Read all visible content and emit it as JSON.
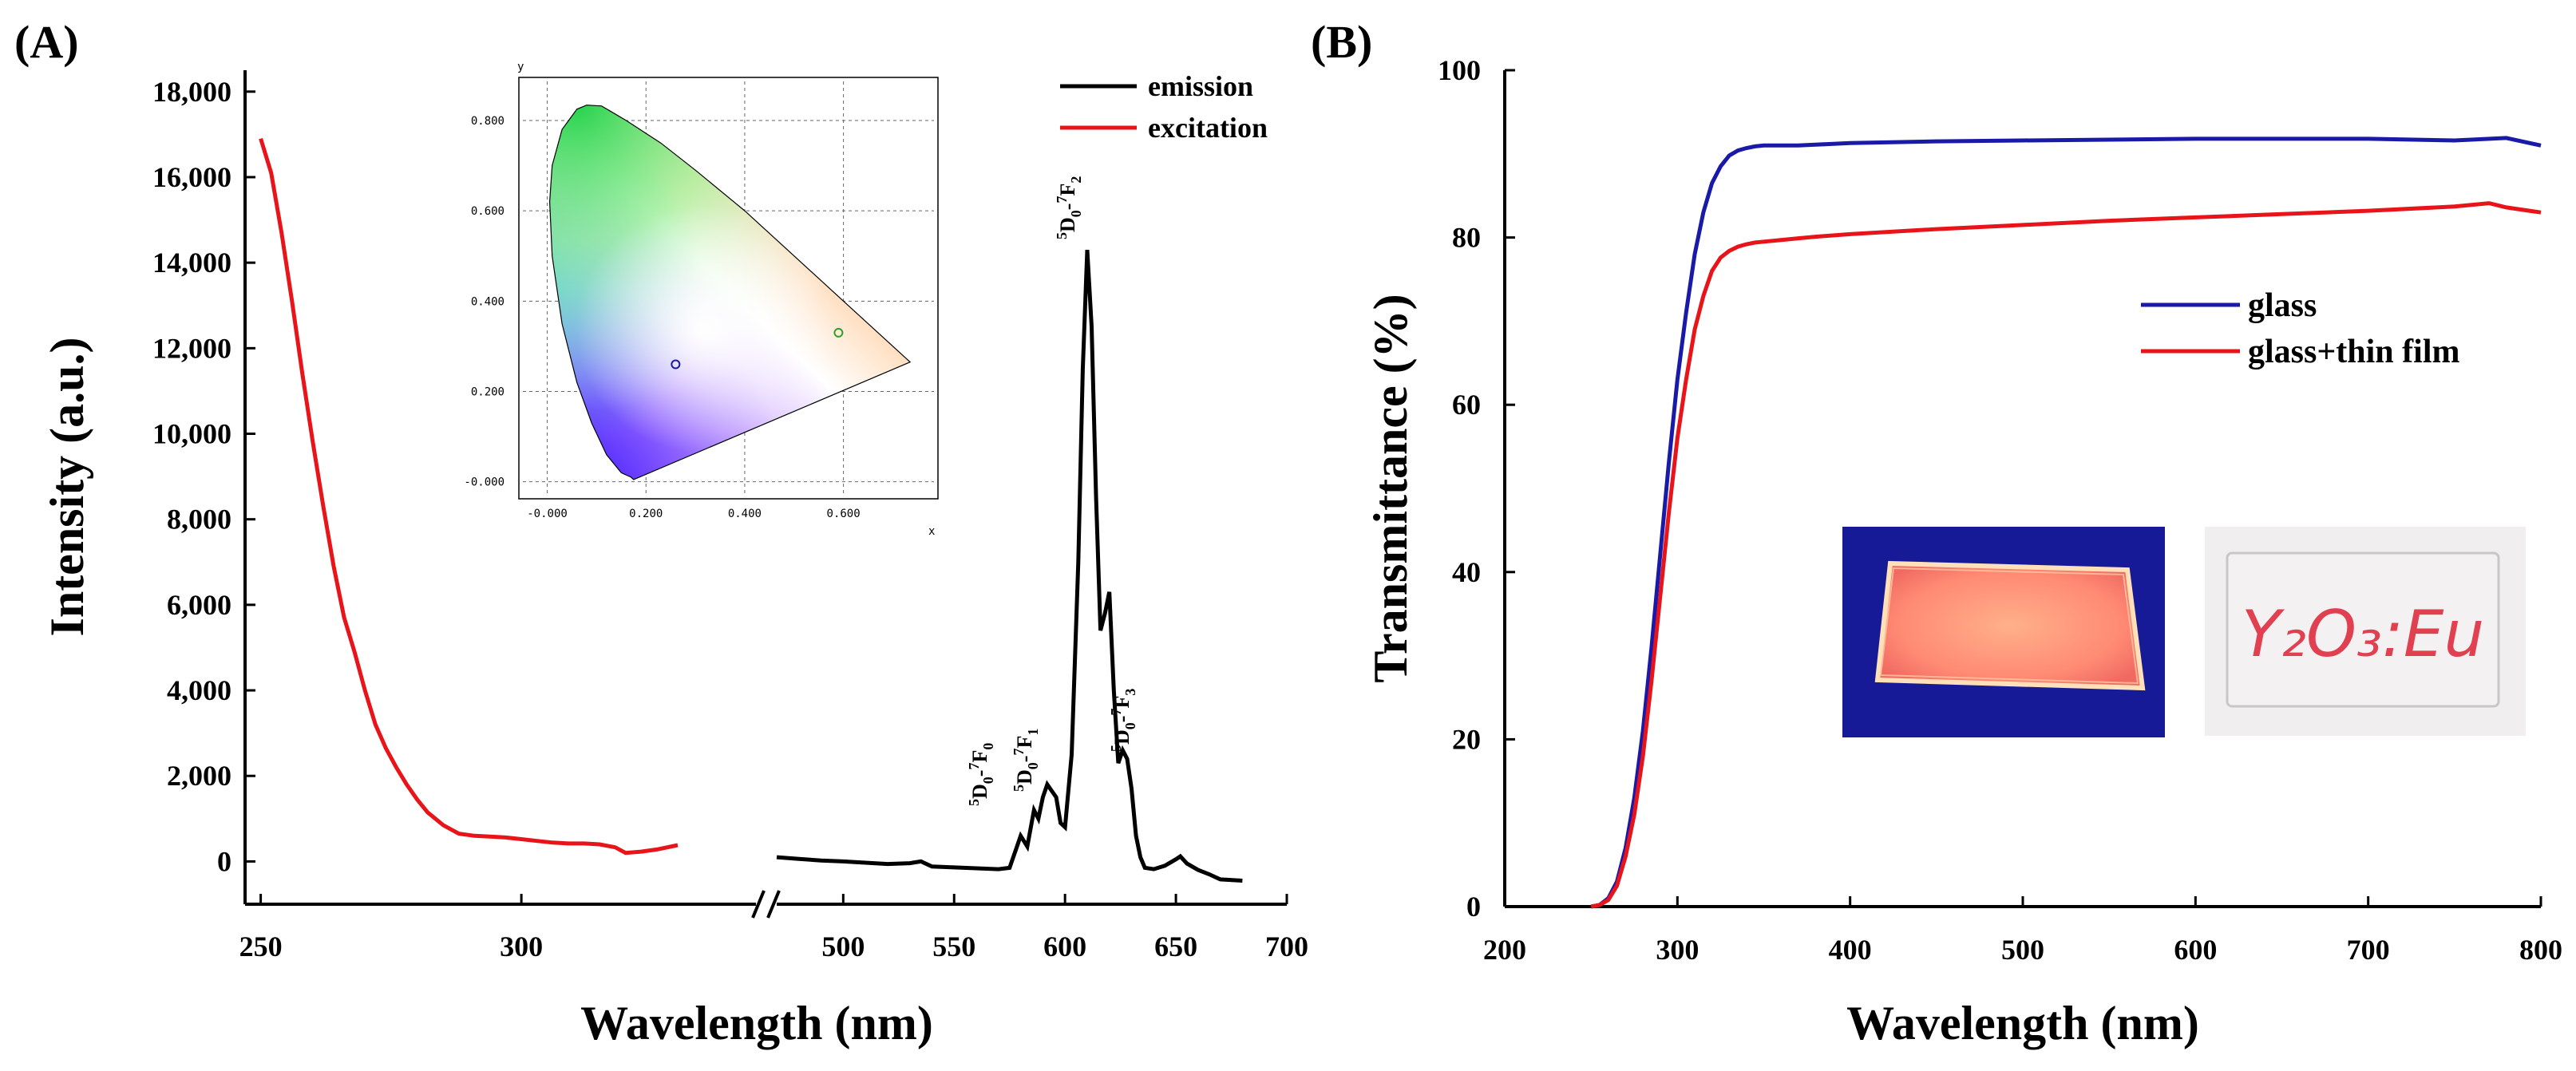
{
  "chart_data": [
    {
      "panel_label": "(A)",
      "type": "line",
      "xlabel": "Wavelength (nm)",
      "ylabel": "Intensity (a.u.)",
      "ylim": [
        -1000,
        18500
      ],
      "yticks": [
        0,
        2000,
        4000,
        6000,
        8000,
        10000,
        12000,
        14000,
        16000,
        18000
      ],
      "ytick_labels": [
        "0",
        "2,000",
        "4,000",
        "6,000",
        "8,000",
        "10,000",
        "12,000",
        "14,000",
        "16,000",
        "18,000"
      ],
      "axis_break": {
        "left_segment_xlim": [
          247,
          345
        ],
        "right_segment_xlim": [
          470,
          700
        ]
      },
      "xticks": [
        250,
        300,
        500,
        550,
        600,
        650,
        700
      ],
      "xtick_labels": [
        "250",
        "300",
        "500",
        "550",
        "600",
        "650",
        "700"
      ],
      "legend": [
        "emission",
        "excitation"
      ],
      "legend_position": "top-right",
      "series": [
        {
          "name": "excitation",
          "color": "#e8141a",
          "x": [
            250,
            252,
            254,
            256,
            258,
            260,
            262,
            264,
            266,
            268,
            270,
            272,
            274,
            276,
            278,
            280,
            282,
            285,
            288,
            291,
            294,
            297,
            300,
            303,
            306,
            309,
            312,
            315,
            318,
            320,
            323,
            326,
            330
          ],
          "y": [
            16900,
            16100,
            14700,
            13100,
            11400,
            9800,
            8300,
            6900,
            5700,
            4900,
            4000,
            3200,
            2650,
            2200,
            1800,
            1450,
            1150,
            850,
            650,
            600,
            580,
            560,
            520,
            480,
            440,
            420,
            420,
            400,
            330,
            200,
            230,
            280,
            380
          ]
        },
        {
          "name": "emission",
          "color": "#000000",
          "x": [
            470,
            480,
            490,
            500,
            510,
            520,
            530,
            535,
            540,
            550,
            560,
            570,
            575,
            578,
            580,
            583,
            586,
            588,
            590,
            592,
            594,
            596,
            598,
            600,
            603,
            606,
            608,
            610,
            612,
            614,
            616,
            618,
            620,
            622,
            624,
            626,
            628,
            630,
            632,
            634,
            636,
            640,
            645,
            650,
            652,
            655,
            660,
            665,
            670,
            680
          ],
          "y": [
            100,
            60,
            20,
            0,
            -30,
            -60,
            -40,
            0,
            -120,
            -140,
            -160,
            -180,
            -150,
            300,
            600,
            350,
            1200,
            1000,
            1500,
            1800,
            1650,
            1500,
            900,
            800,
            2500,
            7000,
            11500,
            14300,
            12500,
            8500,
            5400,
            5800,
            6300,
            4000,
            2300,
            2600,
            2400,
            1700,
            600,
            100,
            -150,
            -180,
            -100,
            50,
            120,
            -50,
            -200,
            -300,
            -420,
            -450
          ]
        }
      ],
      "annotations": [
        "5D0-7F0",
        "5D0-7F1",
        "5D0-7F2",
        "5D0-7F3"
      ],
      "inset_cie": {
        "xlabel": "x",
        "ylabel": "y",
        "xticks": [
          0.0,
          0.2,
          0.4,
          0.6
        ],
        "xtick_labels": [
          "-0.000",
          "0.200",
          "0.400",
          "0.600"
        ],
        "yticks": [
          0.0,
          0.2,
          0.4,
          0.6,
          0.8
        ],
        "ytick_labels": [
          "-0.000",
          "0.200",
          "0.400",
          "0.600",
          "0.800"
        ],
        "points": [
          {
            "label": "emission",
            "x": 0.59,
            "y": 0.33,
            "color": "#2e9e2e"
          },
          {
            "label": "excitation",
            "x": 0.26,
            "y": 0.26,
            "color": "#1a1aa0"
          }
        ]
      }
    },
    {
      "panel_label": "(B)",
      "type": "line",
      "xlabel": "Wavelength (nm)",
      "ylabel": "Transmittance (%)",
      "xlim": [
        200,
        800
      ],
      "ylim": [
        0,
        100
      ],
      "xticks": [
        200,
        300,
        400,
        500,
        600,
        700,
        800
      ],
      "xtick_labels": [
        "200",
        "300",
        "400",
        "500",
        "600",
        "700",
        "800"
      ],
      "yticks": [
        0,
        20,
        40,
        60,
        80,
        100
      ],
      "ytick_labels": [
        "0",
        "20",
        "40",
        "60",
        "80",
        "100"
      ],
      "legend": [
        "glass",
        "glass+thin film"
      ],
      "legend_position": "center-right",
      "series": [
        {
          "name": "glass",
          "color": "#1a1aa8",
          "x": [
            250,
            255,
            260,
            265,
            270,
            275,
            280,
            285,
            290,
            295,
            300,
            305,
            310,
            315,
            320,
            325,
            330,
            335,
            340,
            345,
            350,
            360,
            370,
            380,
            400,
            450,
            500,
            550,
            600,
            650,
            700,
            750,
            780,
            800
          ],
          "y": [
            0,
            0.2,
            1,
            3,
            7,
            13,
            21,
            31,
            42,
            53,
            63,
            71,
            78,
            83,
            86.5,
            88.5,
            89.8,
            90.4,
            90.7,
            90.9,
            91.0,
            91.0,
            91.0,
            91.1,
            91.3,
            91.5,
            91.6,
            91.7,
            91.8,
            91.8,
            91.8,
            91.6,
            91.9,
            91.0
          ]
        },
        {
          "name": "glass+thin film",
          "color": "#e8141a",
          "x": [
            250,
            255,
            260,
            265,
            270,
            275,
            280,
            285,
            290,
            295,
            300,
            305,
            310,
            315,
            320,
            325,
            330,
            335,
            340,
            345,
            350,
            360,
            370,
            380,
            400,
            450,
            500,
            550,
            600,
            650,
            700,
            750,
            770,
            780,
            800
          ],
          "y": [
            0,
            0.2,
            0.8,
            2.5,
            6,
            11,
            18,
            27,
            37,
            47,
            56,
            63,
            69,
            73,
            76,
            77.6,
            78.4,
            78.9,
            79.2,
            79.4,
            79.5,
            79.7,
            79.9,
            80.1,
            80.4,
            81.0,
            81.5,
            82.0,
            82.4,
            82.8,
            83.2,
            83.7,
            84.1,
            83.6,
            83.0
          ]
        }
      ],
      "photos": [
        {
          "name": "thin film under UV lamp"
        },
        {
          "name": "slide with handwritten label",
          "label_text": "Y₂O₃:Eu"
        }
      ]
    }
  ]
}
